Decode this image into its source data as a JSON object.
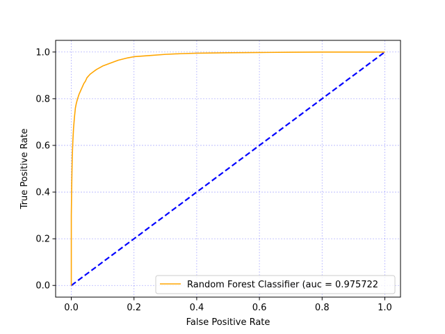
{
  "chart_data": {
    "type": "line",
    "title": "",
    "xlabel": "False Positive Rate",
    "ylabel": "True Positive Rate",
    "xlim": [
      -0.05,
      1.05
    ],
    "ylim": [
      -0.05,
      1.05
    ],
    "x_ticks": [
      "0.0",
      "0.2",
      "0.4",
      "0.6",
      "0.8",
      "1.0"
    ],
    "y_ticks": [
      "0.0",
      "0.2",
      "0.4",
      "0.6",
      "0.8",
      "1.0"
    ],
    "grid": true,
    "grid_color": "#0000ff",
    "legend_position": "lower right",
    "series": [
      {
        "name": "Random Forest Classifier (auc = 0.975722",
        "color": "#ffa500",
        "style": "solid",
        "x": [
          0.0,
          0.0,
          0.001,
          0.002,
          0.003,
          0.005,
          0.007,
          0.01,
          0.013,
          0.016,
          0.02,
          0.025,
          0.03,
          0.035,
          0.04,
          0.045,
          0.05,
          0.06,
          0.07,
          0.08,
          0.1,
          0.12,
          0.15,
          0.18,
          0.2,
          0.25,
          0.3,
          0.35,
          0.4,
          0.5,
          0.6,
          0.7,
          0.8,
          0.9,
          1.0
        ],
        "y": [
          0.0,
          0.3,
          0.4,
          0.48,
          0.55,
          0.62,
          0.67,
          0.72,
          0.76,
          0.78,
          0.8,
          0.82,
          0.835,
          0.85,
          0.865,
          0.875,
          0.89,
          0.905,
          0.915,
          0.925,
          0.94,
          0.95,
          0.965,
          0.975,
          0.98,
          0.985,
          0.99,
          0.993,
          0.995,
          0.997,
          0.998,
          0.999,
          1.0,
          1.0,
          1.0
        ]
      },
      {
        "color": "#0000ff",
        "style": "dashed",
        "x": [
          0,
          1
        ],
        "y": [
          0,
          1
        ]
      }
    ]
  }
}
